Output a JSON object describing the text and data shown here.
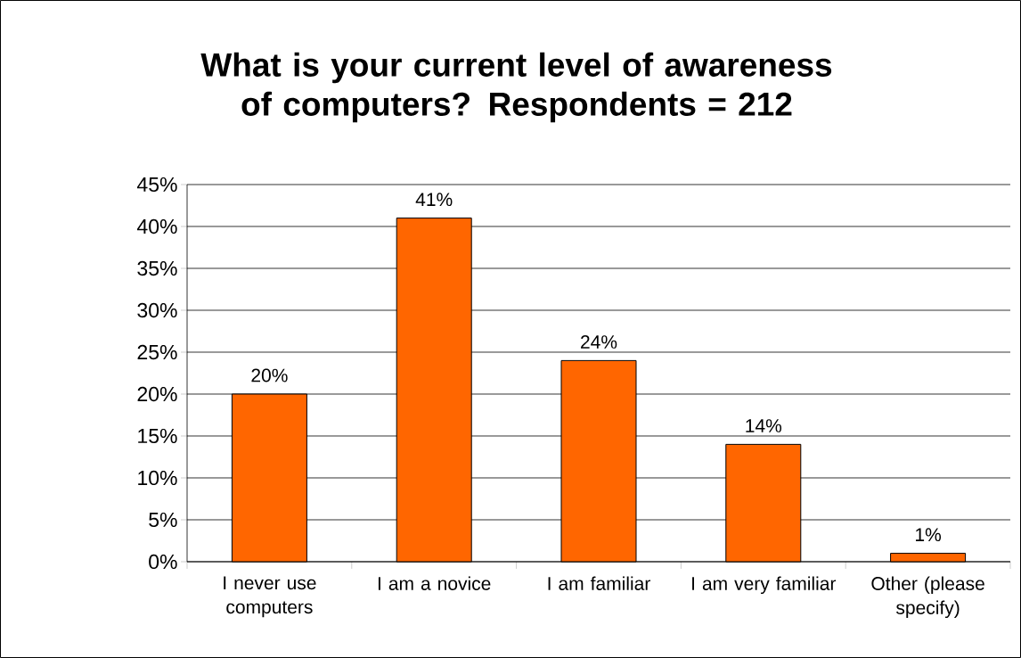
{
  "chart_data": {
    "type": "bar",
    "title": "What is your current level of awareness of computers? Respondents = 212",
    "categories": [
      "I never use computers",
      "I am a novice",
      "I am familiar",
      "I am very familiar",
      "Other (please specify)"
    ],
    "values": [
      20,
      41,
      24,
      14,
      1
    ],
    "value_labels": [
      "20%",
      "41%",
      "24%",
      "14%",
      "1%"
    ],
    "color": "#ff6600",
    "ylim": [
      0,
      45
    ],
    "yticks": [
      {
        "value": 0,
        "label": "0%"
      },
      {
        "value": 5,
        "label": "5%"
      },
      {
        "value": 10,
        "label": "10%"
      },
      {
        "value": 15,
        "label": "15%"
      },
      {
        "value": 20,
        "label": "20%"
      },
      {
        "value": 25,
        "label": "25%"
      },
      {
        "value": 30,
        "label": "30%"
      },
      {
        "value": 35,
        "label": "35%"
      },
      {
        "value": 40,
        "label": "40%"
      },
      {
        "value": 45,
        "label": "45%"
      }
    ],
    "grid": "y"
  }
}
